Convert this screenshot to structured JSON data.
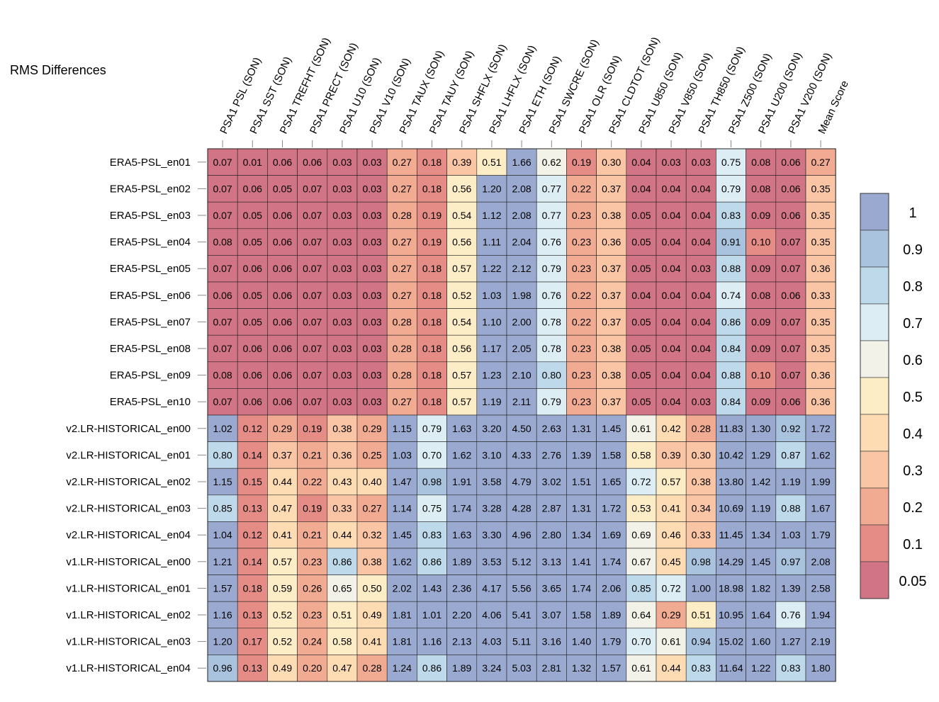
{
  "chart_data": {
    "type": "heatmap",
    "title": "RMS Differences",
    "columns": [
      "PSA1 PSL (SON)",
      "PSA1 SST (SON)",
      "PSA1 TREFHT (SON)",
      "PSA1 PRECT (SON)",
      "PSA1 U10 (SON)",
      "PSA1 V10 (SON)",
      "PSA1 TAUX (SON)",
      "PSA1 TAUY (SON)",
      "PSA1 SHFLX (SON)",
      "PSA1 LHFLX (SON)",
      "PSA1 ETH (SON)",
      "PSA1 SWCRE (SON)",
      "PSA1 OLR (SON)",
      "PSA1 CLDTOT (SON)",
      "PSA1 U850 (SON)",
      "PSA1 V850 (SON)",
      "PSA1 TH850 (SON)",
      "PSA1 Z500 (SON)",
      "PSA1 U200 (SON)",
      "PSA1 V200 (SON)",
      "Mean Score"
    ],
    "rows": [
      "ERA5-PSL_en01",
      "ERA5-PSL_en02",
      "ERA5-PSL_en03",
      "ERA5-PSL_en04",
      "ERA5-PSL_en05",
      "ERA5-PSL_en06",
      "ERA5-PSL_en07",
      "ERA5-PSL_en08",
      "ERA5-PSL_en09",
      "ERA5-PSL_en10",
      "v2.LR-HISTORICAL_en00",
      "v2.LR-HISTORICAL_en01",
      "v2.LR-HISTORICAL_en02",
      "v2.LR-HISTORICAL_en03",
      "v2.LR-HISTORICAL_en04",
      "v1.LR-HISTORICAL_en00",
      "v1.LR-HISTORICAL_en01",
      "v1.LR-HISTORICAL_en02",
      "v1.LR-HISTORICAL_en03",
      "v1.LR-HISTORICAL_en04"
    ],
    "values": [
      [
        "0.07",
        "0.01",
        "0.06",
        "0.06",
        "0.03",
        "0.03",
        "0.27",
        "0.18",
        "0.39",
        "0.51",
        "1.66",
        "0.62",
        "0.19",
        "0.30",
        "0.04",
        "0.03",
        "0.03",
        "0.75",
        "0.08",
        "0.06",
        "0.27"
      ],
      [
        "0.07",
        "0.06",
        "0.05",
        "0.07",
        "0.03",
        "0.03",
        "0.27",
        "0.18",
        "0.56",
        "1.20",
        "2.08",
        "0.77",
        "0.22",
        "0.37",
        "0.04",
        "0.04",
        "0.04",
        "0.79",
        "0.08",
        "0.06",
        "0.35"
      ],
      [
        "0.07",
        "0.05",
        "0.06",
        "0.07",
        "0.03",
        "0.03",
        "0.28",
        "0.19",
        "0.54",
        "1.12",
        "2.08",
        "0.77",
        "0.23",
        "0.38",
        "0.05",
        "0.04",
        "0.04",
        "0.83",
        "0.09",
        "0.06",
        "0.35"
      ],
      [
        "0.08",
        "0.05",
        "0.06",
        "0.07",
        "0.03",
        "0.03",
        "0.27",
        "0.19",
        "0.56",
        "1.11",
        "2.04",
        "0.76",
        "0.23",
        "0.36",
        "0.05",
        "0.04",
        "0.04",
        "0.91",
        "0.10",
        "0.07",
        "0.35"
      ],
      [
        "0.07",
        "0.06",
        "0.06",
        "0.07",
        "0.03",
        "0.03",
        "0.27",
        "0.18",
        "0.57",
        "1.22",
        "2.12",
        "0.79",
        "0.23",
        "0.37",
        "0.05",
        "0.04",
        "0.03",
        "0.88",
        "0.09",
        "0.07",
        "0.36"
      ],
      [
        "0.06",
        "0.05",
        "0.06",
        "0.07",
        "0.03",
        "0.03",
        "0.27",
        "0.18",
        "0.52",
        "1.03",
        "1.98",
        "0.76",
        "0.22",
        "0.37",
        "0.04",
        "0.04",
        "0.04",
        "0.74",
        "0.08",
        "0.06",
        "0.33"
      ],
      [
        "0.07",
        "0.05",
        "0.06",
        "0.07",
        "0.03",
        "0.03",
        "0.28",
        "0.18",
        "0.54",
        "1.10",
        "2.00",
        "0.78",
        "0.22",
        "0.37",
        "0.05",
        "0.04",
        "0.04",
        "0.86",
        "0.09",
        "0.07",
        "0.35"
      ],
      [
        "0.07",
        "0.06",
        "0.06",
        "0.07",
        "0.03",
        "0.03",
        "0.28",
        "0.18",
        "0.56",
        "1.17",
        "2.05",
        "0.78",
        "0.23",
        "0.38",
        "0.05",
        "0.04",
        "0.04",
        "0.84",
        "0.09",
        "0.07",
        "0.35"
      ],
      [
        "0.08",
        "0.06",
        "0.06",
        "0.07",
        "0.03",
        "0.03",
        "0.28",
        "0.18",
        "0.57",
        "1.23",
        "2.10",
        "0.80",
        "0.23",
        "0.38",
        "0.05",
        "0.04",
        "0.04",
        "0.88",
        "0.10",
        "0.07",
        "0.36"
      ],
      [
        "0.07",
        "0.06",
        "0.06",
        "0.07",
        "0.03",
        "0.03",
        "0.27",
        "0.18",
        "0.57",
        "1.19",
        "2.11",
        "0.79",
        "0.23",
        "0.37",
        "0.05",
        "0.04",
        "0.03",
        "0.84",
        "0.09",
        "0.06",
        "0.36"
      ],
      [
        "1.02",
        "0.12",
        "0.29",
        "0.19",
        "0.38",
        "0.29",
        "1.15",
        "0.79",
        "1.63",
        "3.20",
        "4.50",
        "2.63",
        "1.31",
        "1.45",
        "0.61",
        "0.42",
        "0.28",
        "11.83",
        "1.30",
        "0.92",
        "1.72"
      ],
      [
        "0.80",
        "0.14",
        "0.37",
        "0.21",
        "0.36",
        "0.25",
        "1.03",
        "0.70",
        "1.62",
        "3.10",
        "4.33",
        "2.76",
        "1.39",
        "1.58",
        "0.58",
        "0.39",
        "0.30",
        "10.42",
        "1.29",
        "0.87",
        "1.62"
      ],
      [
        "1.15",
        "0.15",
        "0.44",
        "0.22",
        "0.43",
        "0.40",
        "1.47",
        "0.98",
        "1.91",
        "3.58",
        "4.79",
        "3.02",
        "1.51",
        "1.65",
        "0.72",
        "0.57",
        "0.38",
        "13.80",
        "1.42",
        "1.19",
        "1.99"
      ],
      [
        "0.85",
        "0.13",
        "0.47",
        "0.19",
        "0.33",
        "0.27",
        "1.14",
        "0.75",
        "1.74",
        "3.28",
        "4.28",
        "2.87",
        "1.31",
        "1.72",
        "0.53",
        "0.41",
        "0.34",
        "10.69",
        "1.19",
        "0.88",
        "1.67"
      ],
      [
        "1.04",
        "0.12",
        "0.41",
        "0.21",
        "0.44",
        "0.32",
        "1.45",
        "0.83",
        "1.63",
        "3.30",
        "4.96",
        "2.80",
        "1.34",
        "1.69",
        "0.69",
        "0.46",
        "0.33",
        "11.45",
        "1.34",
        "1.03",
        "1.79"
      ],
      [
        "1.21",
        "0.14",
        "0.57",
        "0.23",
        "0.86",
        "0.38",
        "1.62",
        "0.86",
        "1.89",
        "3.53",
        "5.12",
        "3.13",
        "1.41",
        "1.74",
        "0.67",
        "0.45",
        "0.98",
        "14.29",
        "1.45",
        "0.97",
        "2.08"
      ],
      [
        "1.57",
        "0.18",
        "0.59",
        "0.26",
        "0.65",
        "0.50",
        "2.02",
        "1.43",
        "2.36",
        "4.17",
        "5.56",
        "3.65",
        "1.74",
        "2.06",
        "0.85",
        "0.72",
        "1.00",
        "18.98",
        "1.82",
        "1.39",
        "2.58"
      ],
      [
        "1.16",
        "0.13",
        "0.52",
        "0.23",
        "0.51",
        "0.49",
        "1.81",
        "1.01",
        "2.20",
        "4.06",
        "5.41",
        "3.07",
        "1.58",
        "1.89",
        "0.64",
        "0.29",
        "0.51",
        "10.95",
        "1.64",
        "0.76",
        "1.94"
      ],
      [
        "1.20",
        "0.17",
        "0.52",
        "0.24",
        "0.58",
        "0.41",
        "1.81",
        "1.16",
        "2.13",
        "4.03",
        "5.11",
        "3.16",
        "1.40",
        "1.79",
        "0.70",
        "0.61",
        "0.94",
        "15.02",
        "1.60",
        "1.27",
        "2.19"
      ],
      [
        "0.96",
        "0.13",
        "0.49",
        "0.20",
        "0.47",
        "0.28",
        "1.24",
        "0.86",
        "1.89",
        "3.24",
        "5.03",
        "2.81",
        "1.32",
        "1.57",
        "0.61",
        "0.44",
        "0.83",
        "11.64",
        "1.22",
        "0.83",
        "1.80"
      ]
    ],
    "colorbar": {
      "tick_labels": [
        "1",
        "0.9",
        "0.8",
        "0.7",
        "0.6",
        "0.5",
        "0.4",
        "0.3",
        "0.2",
        "0.1",
        "0.05"
      ],
      "bins_top_to_bottom": [
        "#9aa9cf",
        "#a9c3de",
        "#bed9ea",
        "#dcedf3",
        "#f2f2e8",
        "#fdedc6",
        "#fddcb4",
        "#f9c5a5",
        "#f1ab93",
        "#e48c85",
        "#d17485"
      ]
    }
  }
}
